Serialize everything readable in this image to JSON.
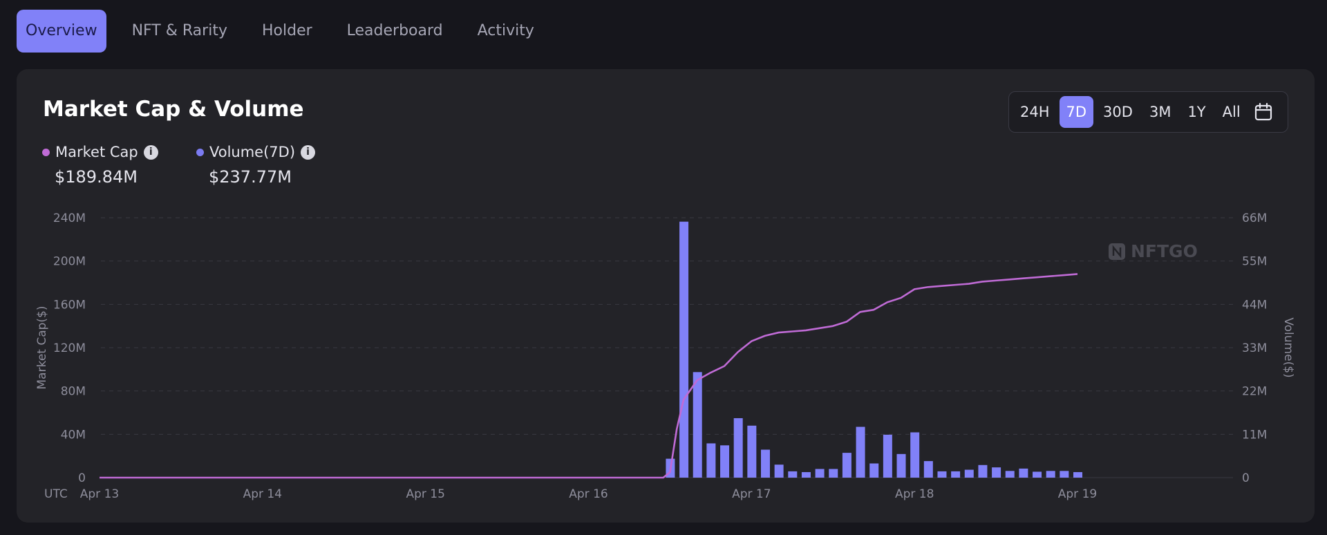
{
  "tabs": [
    {
      "label": "Overview",
      "active": true
    },
    {
      "label": "NFT & Rarity",
      "active": false
    },
    {
      "label": "Holder",
      "active": false
    },
    {
      "label": "Leaderboard",
      "active": false
    },
    {
      "label": "Activity",
      "active": false
    }
  ],
  "card": {
    "title": "Market Cap & Volume",
    "ranges": [
      "24H",
      "7D",
      "30D",
      "3M",
      "1Y",
      "All"
    ],
    "active_range": "7D",
    "calendar_icon": "calendar-icon"
  },
  "legend": {
    "market_cap": {
      "name": "Market Cap",
      "value": "$189.84M",
      "color": "#c06bd6"
    },
    "volume": {
      "name": "Volume(7D)",
      "value": "$237.77M",
      "color": "#7b7bf2"
    }
  },
  "watermark": "NFTGO",
  "chart_data": {
    "type": "bar",
    "timezone_label": "UTC",
    "x_tick_labels": [
      "Apr 13",
      "Apr 14",
      "Apr 15",
      "Apr 16",
      "Apr 17",
      "Apr 18",
      "Apr 19"
    ],
    "y_left": {
      "title": "Market Cap($)",
      "ticks": [
        "0",
        "40M",
        "80M",
        "120M",
        "160M",
        "200M",
        "240M"
      ],
      "range": [
        0,
        240
      ]
    },
    "y_right": {
      "title": "Volume($)",
      "ticks": [
        "0",
        "11M",
        "22M",
        "33M",
        "44M",
        "55M",
        "66M"
      ],
      "range": [
        0,
        66
      ]
    },
    "x_range": [
      "2023-04-13T00:00",
      "2023-04-19T00:00"
    ],
    "grid": true,
    "series": [
      {
        "name": "Volume(7D)",
        "kind": "bar",
        "axis": "right",
        "color": "#8181f8",
        "points": [
          {
            "x": "2023-04-16T12:00",
            "y": 4.8
          },
          {
            "x": "2023-04-16T14:00",
            "y": 65.0
          },
          {
            "x": "2023-04-16T16:00",
            "y": 26.8
          },
          {
            "x": "2023-04-16T18:00",
            "y": 8.7
          },
          {
            "x": "2023-04-16T20:00",
            "y": 8.2
          },
          {
            "x": "2023-04-16T22:00",
            "y": 15.1
          },
          {
            "x": "2023-04-17T00:00",
            "y": 13.2
          },
          {
            "x": "2023-04-17T02:00",
            "y": 7.1
          },
          {
            "x": "2023-04-17T04:00",
            "y": 3.3
          },
          {
            "x": "2023-04-17T06:00",
            "y": 1.6
          },
          {
            "x": "2023-04-17T08:00",
            "y": 1.4
          },
          {
            "x": "2023-04-17T10:00",
            "y": 2.2
          },
          {
            "x": "2023-04-17T12:00",
            "y": 2.2
          },
          {
            "x": "2023-04-17T14:00",
            "y": 6.3
          },
          {
            "x": "2023-04-17T16:00",
            "y": 12.9
          },
          {
            "x": "2023-04-17T18:00",
            "y": 3.6
          },
          {
            "x": "2023-04-17T20:00",
            "y": 10.9
          },
          {
            "x": "2023-04-17T22:00",
            "y": 6.0
          },
          {
            "x": "2023-04-18T00:00",
            "y": 11.5
          },
          {
            "x": "2023-04-18T02:00",
            "y": 4.2
          },
          {
            "x": "2023-04-18T04:00",
            "y": 1.6
          },
          {
            "x": "2023-04-18T06:00",
            "y": 1.6
          },
          {
            "x": "2023-04-18T08:00",
            "y": 2.0
          },
          {
            "x": "2023-04-18T10:00",
            "y": 3.2
          },
          {
            "x": "2023-04-18T12:00",
            "y": 2.6
          },
          {
            "x": "2023-04-18T14:00",
            "y": 1.7
          },
          {
            "x": "2023-04-18T16:00",
            "y": 2.3
          },
          {
            "x": "2023-04-18T18:00",
            "y": 1.5
          },
          {
            "x": "2023-04-18T20:00",
            "y": 1.7
          },
          {
            "x": "2023-04-18T22:00",
            "y": 1.7
          },
          {
            "x": "2023-04-19T00:00",
            "y": 1.4
          }
        ]
      },
      {
        "name": "Market Cap",
        "kind": "line",
        "axis": "left",
        "color": "#c06bd6",
        "points": [
          {
            "x": "2023-04-13T00:00",
            "y": 0
          },
          {
            "x": "2023-04-16T11:00",
            "y": 0
          },
          {
            "x": "2023-04-16T12:00",
            "y": 5
          },
          {
            "x": "2023-04-16T13:00",
            "y": 45
          },
          {
            "x": "2023-04-16T14:00",
            "y": 72
          },
          {
            "x": "2023-04-16T16:00",
            "y": 90
          },
          {
            "x": "2023-04-16T18:00",
            "y": 97
          },
          {
            "x": "2023-04-16T20:00",
            "y": 103
          },
          {
            "x": "2023-04-16T22:00",
            "y": 116
          },
          {
            "x": "2023-04-17T00:00",
            "y": 126
          },
          {
            "x": "2023-04-17T02:00",
            "y": 131
          },
          {
            "x": "2023-04-17T04:00",
            "y": 134
          },
          {
            "x": "2023-04-17T06:00",
            "y": 135
          },
          {
            "x": "2023-04-17T08:00",
            "y": 136
          },
          {
            "x": "2023-04-17T10:00",
            "y": 138
          },
          {
            "x": "2023-04-17T12:00",
            "y": 140
          },
          {
            "x": "2023-04-17T14:00",
            "y": 144
          },
          {
            "x": "2023-04-17T16:00",
            "y": 153
          },
          {
            "x": "2023-04-17T18:00",
            "y": 155
          },
          {
            "x": "2023-04-17T20:00",
            "y": 162
          },
          {
            "x": "2023-04-17T22:00",
            "y": 166
          },
          {
            "x": "2023-04-18T00:00",
            "y": 174
          },
          {
            "x": "2023-04-18T02:00",
            "y": 176
          },
          {
            "x": "2023-04-18T04:00",
            "y": 177
          },
          {
            "x": "2023-04-18T06:00",
            "y": 178
          },
          {
            "x": "2023-04-18T08:00",
            "y": 179
          },
          {
            "x": "2023-04-18T10:00",
            "y": 181
          },
          {
            "x": "2023-04-18T12:00",
            "y": 182
          },
          {
            "x": "2023-04-18T14:00",
            "y": 183
          },
          {
            "x": "2023-04-18T16:00",
            "y": 184
          },
          {
            "x": "2023-04-18T18:00",
            "y": 185
          },
          {
            "x": "2023-04-18T20:00",
            "y": 186
          },
          {
            "x": "2023-04-18T22:00",
            "y": 187
          },
          {
            "x": "2023-04-19T00:00",
            "y": 188
          }
        ]
      }
    ]
  }
}
